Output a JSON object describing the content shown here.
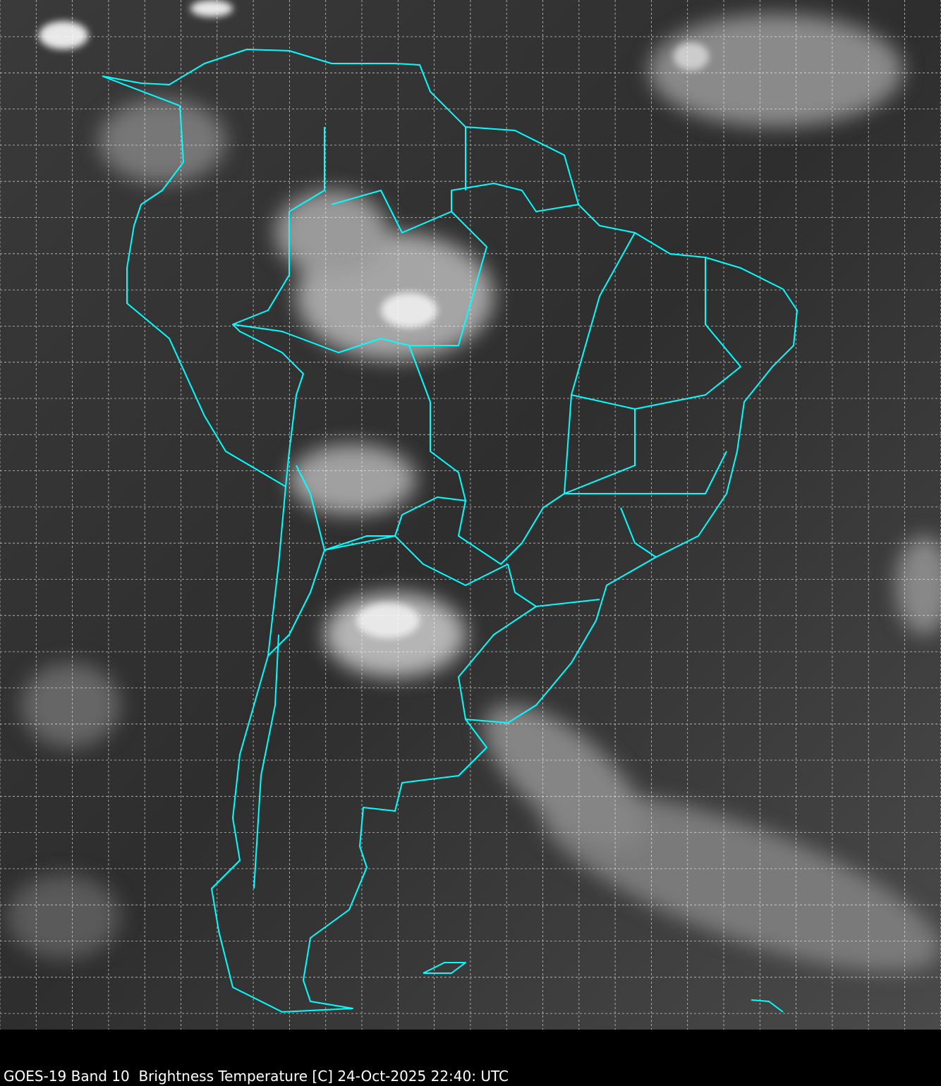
{
  "caption": "GOES-19 Band 10  Brightness Temperature [C] 24-Oct-2025 22:40: UTC",
  "map": {
    "imagery": "grayscale infrared brightness temperature",
    "outline_color": "#00ffff",
    "grid_color": "#ffffff",
    "grid": "dashed lat/lon graticule"
  }
}
